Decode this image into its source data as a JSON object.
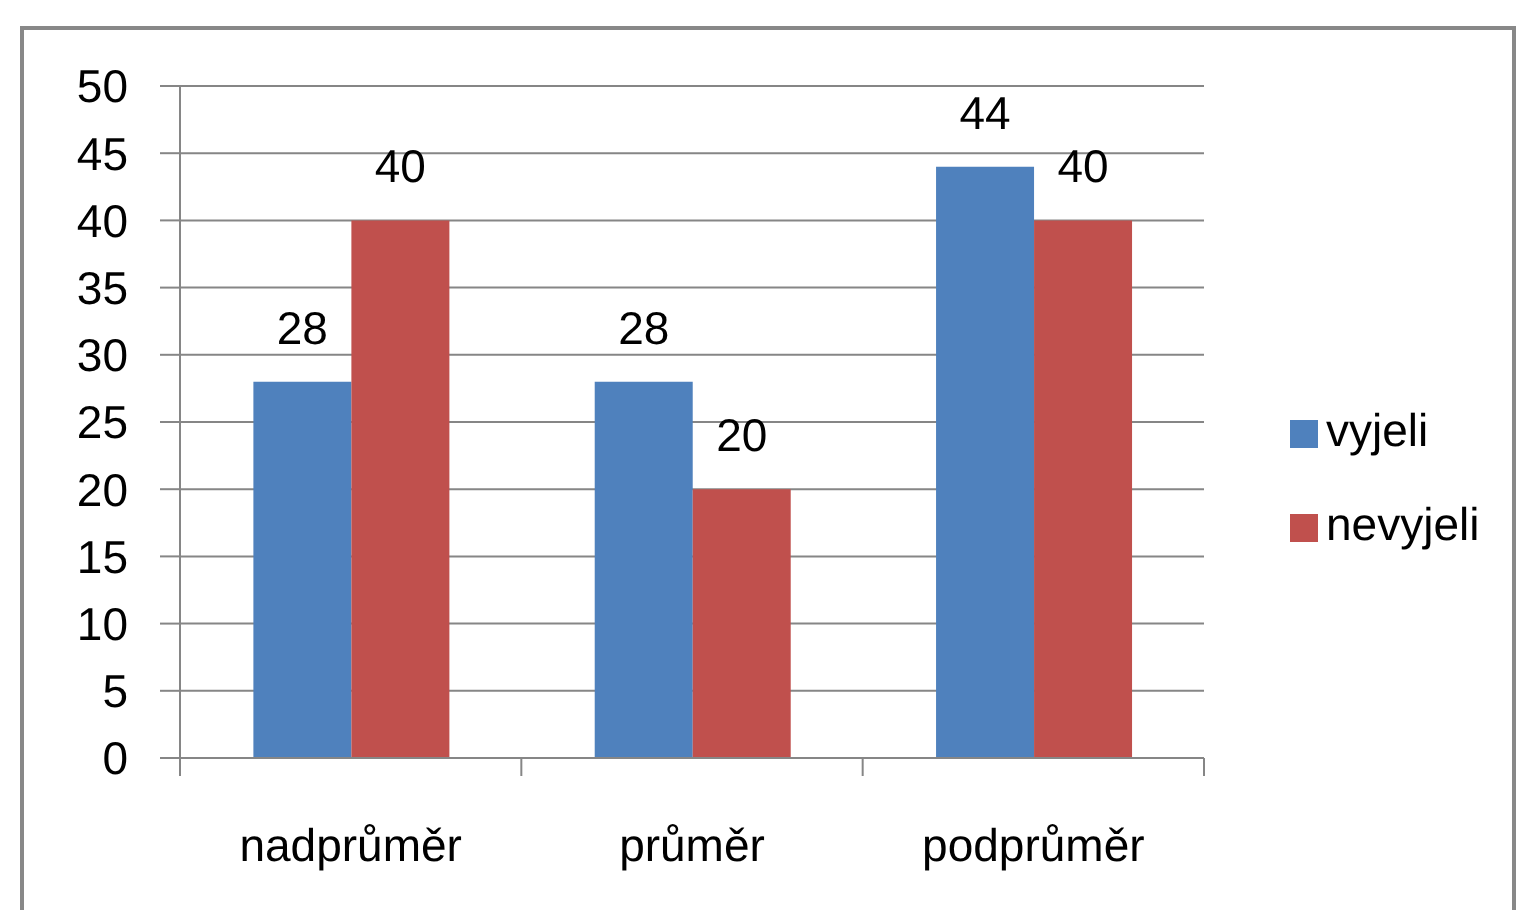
{
  "chart_data": {
    "type": "bar",
    "categories": [
      "nadprůměr",
      "průměr",
      "podprůměr"
    ],
    "series": [
      {
        "name": "vyjeli",
        "color": "#4f81bd",
        "values": [
          28,
          28,
          44
        ]
      },
      {
        "name": "nevyjeli",
        "color": "#c0504d",
        "values": [
          40,
          20,
          40
        ]
      }
    ],
    "ylim": [
      0,
      50
    ],
    "yticks": [
      0,
      5,
      10,
      15,
      20,
      25,
      30,
      35,
      40,
      45,
      50
    ],
    "grid": "y",
    "legend": "right",
    "data_labels": true
  }
}
